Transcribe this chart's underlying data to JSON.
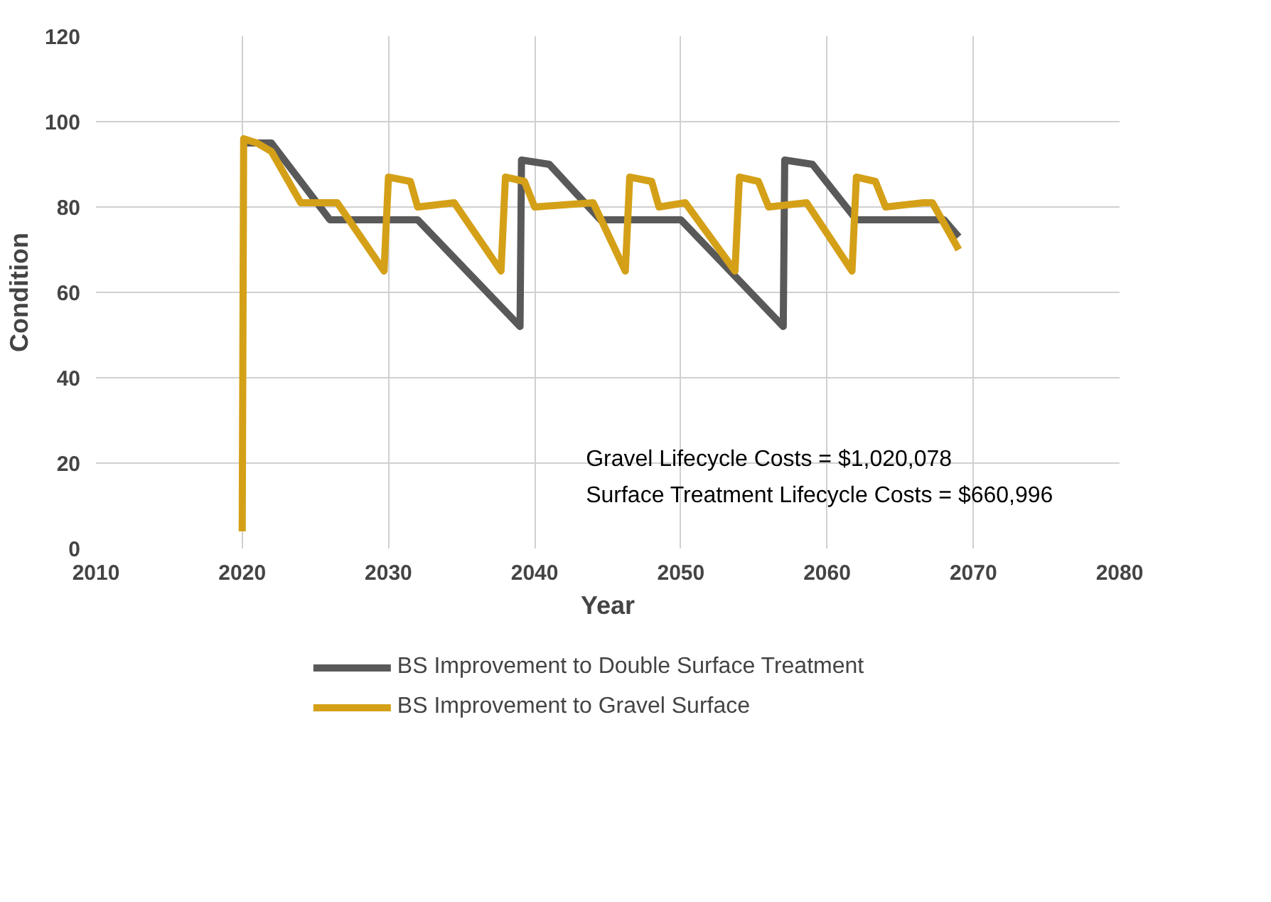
{
  "chart_data": {
    "type": "line",
    "xlabel": "Year",
    "ylabel": "Condition",
    "xlim": [
      2010,
      2080
    ],
    "xticks": [
      2010,
      2020,
      2030,
      2040,
      2050,
      2060,
      2070,
      2080
    ],
    "ylim": [
      0,
      120
    ],
    "yticks": [
      0,
      20,
      40,
      60,
      80,
      100,
      120
    ],
    "grid": true,
    "legend": "bottom",
    "marker": "none",
    "line_style": "solid",
    "annotations": [
      "Gravel Lifecycle Costs = $1,020,078",
      "Surface Treatment Lifecycle Costs = $660,996"
    ],
    "series": [
      {
        "name": "BS Improvement to Double Surface Treatment",
        "color": "#595959",
        "x": [
          2020,
          2022,
          2026,
          2032,
          2039,
          2039.1,
          2041,
          2044.5,
          2050,
          2057,
          2057.1,
          2059,
          2062,
          2068,
          2069
        ],
        "values": [
          95,
          95,
          77,
          77,
          52,
          91,
          90,
          77,
          77,
          52,
          91,
          90,
          77,
          77,
          73
        ]
      },
      {
        "name": "BS Improvement to Gravel Surface",
        "color": "#d4a017",
        "x": [
          2020,
          2020.1,
          2021,
          2022,
          2024,
          2026.5,
          2029.7,
          2030,
          2031.5,
          2032,
          2034.5,
          2037.7,
          2038,
          2039.3,
          2040,
          2044,
          2046.2,
          2046.5,
          2048,
          2048.5,
          2050.3,
          2053.7,
          2054,
          2055.3,
          2056,
          2058.6,
          2061.7,
          2062,
          2063.3,
          2064,
          2066.6,
          2067.2,
          2069
        ],
        "values": [
          4,
          96,
          95,
          93,
          81,
          81,
          65,
          87,
          86,
          80,
          81,
          65,
          87,
          86,
          80,
          81,
          65,
          87,
          86,
          80,
          81,
          65,
          87,
          86,
          80,
          81,
          65,
          87,
          86,
          80,
          81,
          81,
          70
        ]
      }
    ]
  }
}
